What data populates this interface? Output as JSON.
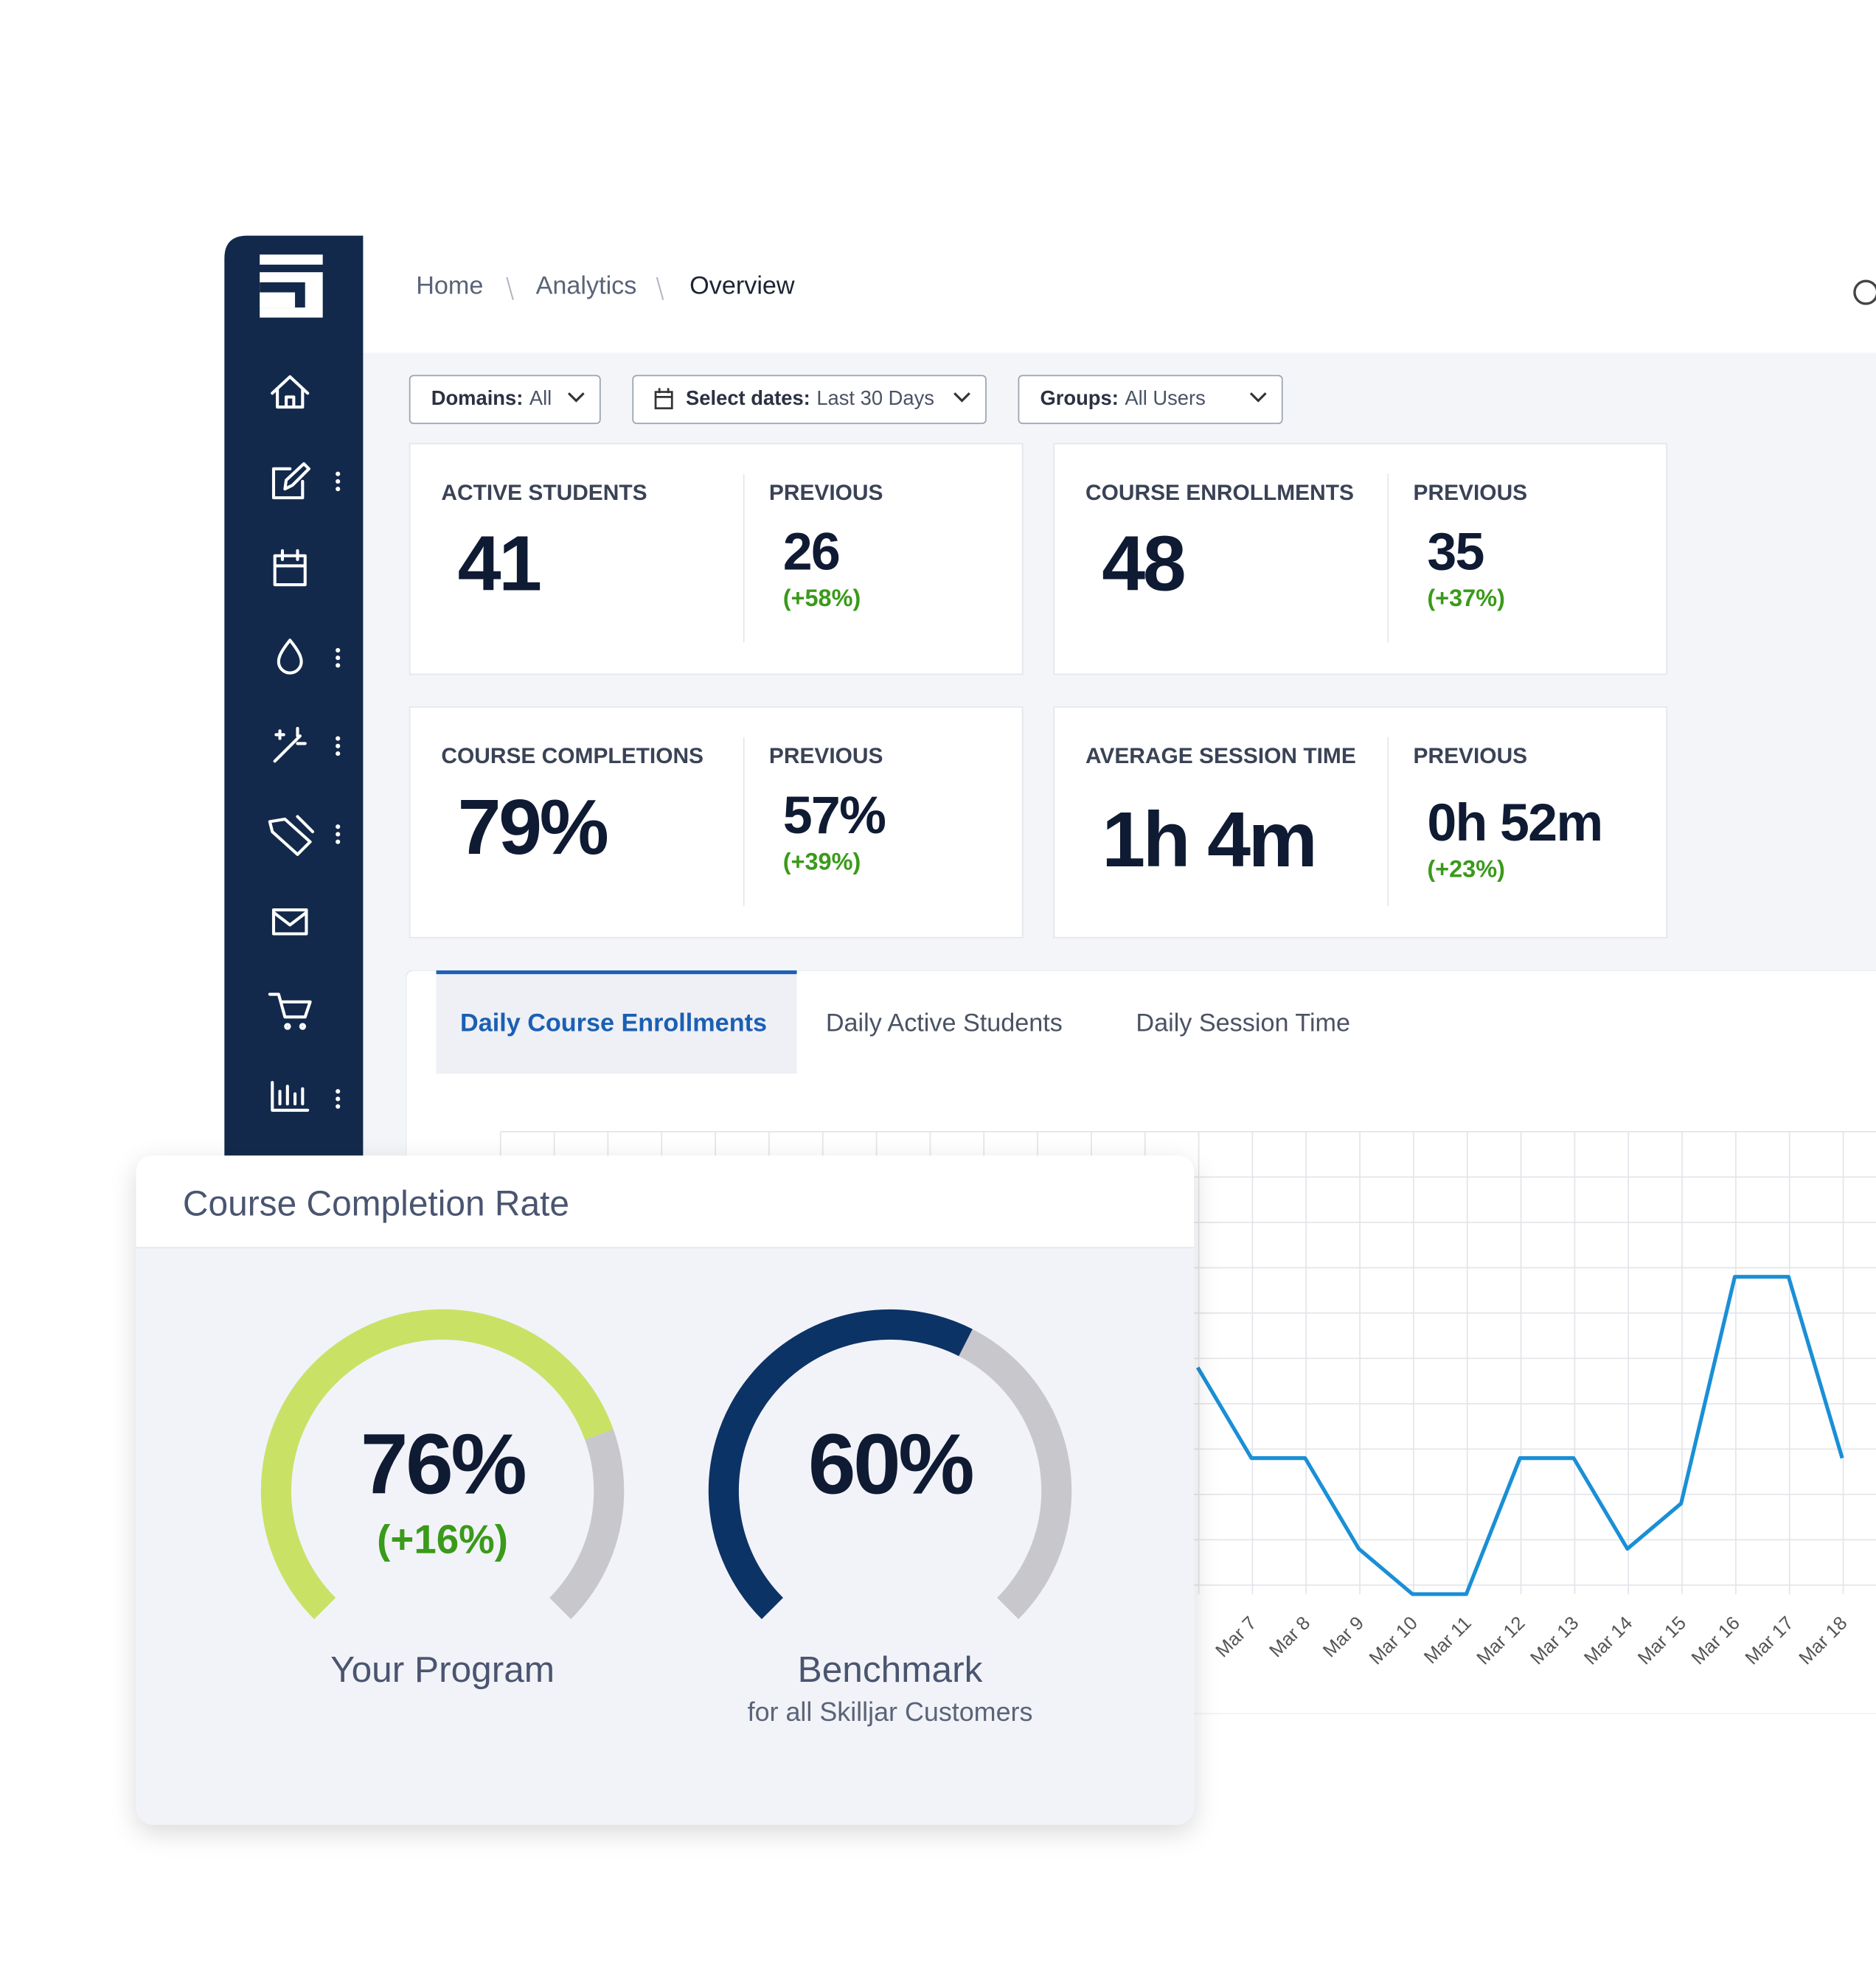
{
  "breadcrumb": [
    "Home",
    "Analytics",
    "Overview"
  ],
  "filters": [
    {
      "label": "Domains:",
      "value": "All"
    },
    {
      "label": "Select dates:",
      "value": "Last 30 Days"
    },
    {
      "label": "Groups:",
      "value": "All Users"
    }
  ],
  "stats": [
    {
      "label": "ACTIVE STUDENTS",
      "value": "41",
      "previous_label": "PREVIOUS",
      "previous": "26",
      "change": "(+58%)"
    },
    {
      "label": "COURSE ENROLLMENTS",
      "value": "48",
      "previous_label": "PREVIOUS",
      "previous": "35",
      "change": "(+37%)"
    },
    {
      "label": "COURSE COMPLETIONS",
      "value": "79%",
      "previous_label": "PREVIOUS",
      "previous": "57%",
      "change": "(+39%)"
    },
    {
      "label": "AVERAGE SESSION TIME",
      "value": "1h 4m",
      "previous_label": "PREVIOUS",
      "previous": "0h 52m",
      "change": "(+23%)"
    }
  ],
  "tabs": [
    "Daily Course Enrollments",
    "Daily Active Students",
    "Daily Session Time"
  ],
  "chart_data": {
    "type": "line",
    "categories": [
      null,
      "Mar 7",
      "Mar 8",
      "Mar 9",
      "Mar 10",
      "Mar 11",
      "Mar 12",
      "Mar 13",
      "Mar 14",
      "Mar 15",
      "Mar 16",
      "Mar 17",
      "Mar 18"
    ],
    "series": [
      {
        "name": "Daily Course Enrollments",
        "color": "#1a8fd6",
        "values": [
          5,
          3,
          3,
          1,
          0,
          0,
          3,
          3,
          1,
          2,
          7,
          7,
          3
        ]
      }
    ],
    "ylim": [
      0,
      10.2
    ],
    "grid": true
  },
  "completion_card": {
    "title": "Course Completion Rate",
    "gauges": [
      {
        "name": "Your Program",
        "value": 76,
        "value_label": "76%",
        "change_label": "(+16%)",
        "color": "#c9e265"
      },
      {
        "name": "Benchmark",
        "subtitle": "for all Skilljar Customers",
        "value": 60,
        "value_label": "60%",
        "color": "#0c3366"
      }
    ]
  }
}
